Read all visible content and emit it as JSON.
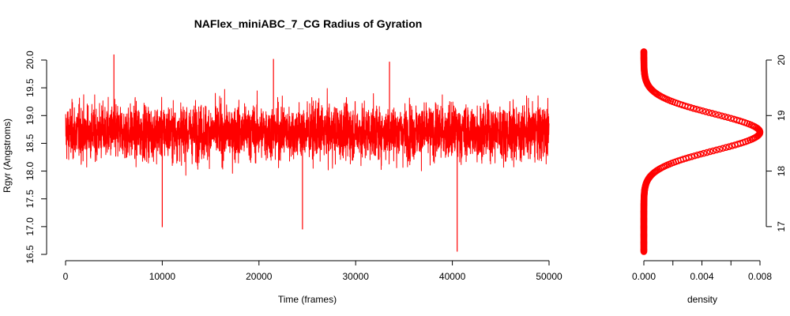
{
  "chart_data": [
    {
      "type": "line",
      "title": "NAFlex_miniABC_7_CG Radius of Gyration",
      "xlabel": "Time (frames)",
      "ylabel": "Rgyr (Angstroms)",
      "xlim": [
        0,
        50000
      ],
      "ylim": [
        16.5,
        20.0
      ],
      "x_ticks": [
        "0",
        "10000",
        "20000",
        "30000",
        "40000",
        "50000"
      ],
      "y_ticks": [
        "16.5",
        "17.0",
        "17.5",
        "18.0",
        "18.5",
        "19.0",
        "19.5",
        "20.0"
      ],
      "series": [
        {
          "color": "#ff0000",
          "n_frames": 50000,
          "mean": 18.7,
          "typical_range": [
            17.8,
            19.6
          ],
          "extremes": [
            {
              "x": 5000,
              "y": 20.1
            },
            {
              "x": 21500,
              "y": 20.02
            },
            {
              "x": 33500,
              "y": 19.97
            },
            {
              "x": 10000,
              "y": 16.99
            },
            {
              "x": 24500,
              "y": 16.95
            },
            {
              "x": 40500,
              "y": 16.55
            }
          ]
        }
      ]
    },
    {
      "type": "scatter",
      "xlabel": "density",
      "ylabel": "",
      "xlim": [
        0,
        0.008
      ],
      "ylim": [
        16.5,
        20.0
      ],
      "x_ticks": [
        "0.000",
        "0.004",
        "0.008"
      ],
      "y_ticks": [
        "17",
        "18",
        "19",
        "20"
      ],
      "series": [
        {
          "color": "#ff0000",
          "mean": 18.7,
          "sd": 0.33,
          "peak_density": 0.008,
          "y_range": [
            16.55,
            20.15
          ]
        }
      ]
    }
  ]
}
